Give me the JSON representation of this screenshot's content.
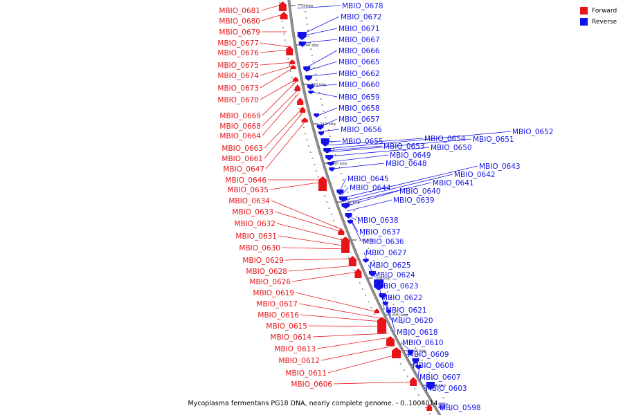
{
  "caption": "Mycoplasma fermentans PG18 DNA, nearly complete genome. - 0..1004014",
  "legend": [
    {
      "label": "Forward",
      "color": "#e8141a",
      "icon": "red-square-icon"
    },
    {
      "label": "Reverse",
      "color": "#1212e8",
      "icon": "blue-square-icon"
    }
  ],
  "colors": {
    "forward": "#e8141a",
    "reverse": "#1212e8",
    "backbone": "#888888"
  },
  "ticks": [
    "770 kbp",
    "760 kbp",
    "750 kbp",
    "740 kbp",
    "730 kbp",
    "720 kbp",
    "710 kbp",
    "700 kbp",
    "690 kbp",
    "680 kbp",
    "670 kbp"
  ],
  "forward_genes": [
    "MBIO_0681",
    "MBIO_0680",
    "MBIO_0679",
    "MBIO_0677",
    "MBIO_0676",
    "MBIO_0675",
    "MBIO_0674",
    "MBIO_0673",
    "MBIO_0670",
    "MBIO_0669",
    "MBIO_0668",
    "MBIO_0664",
    "MBIO_0663",
    "MBIO_0661",
    "MBIO_0647",
    "MBIO_0646",
    "MBIO_0635",
    "MBIO_0634",
    "MBIO_0633",
    "MBIO_0632",
    "MBIO_0631",
    "MBIO_0630",
    "MBIO_0629",
    "MBIO_0628",
    "MBIO_0626",
    "MBIO_0619",
    "MBIO_0617",
    "MBIO_0616",
    "MBIO_0615",
    "MBIO_0614",
    "MBIO_0613",
    "MBIO_0612",
    "MBIO_0611",
    "MBIO_0606"
  ],
  "reverse_genes": [
    "MBIO_0678",
    "MBIO_0672",
    "MBIO_0671",
    "MBIO_0667",
    "MBIO_0666",
    "MBIO_0665",
    "MBIO_0662",
    "MBIO_0660",
    "MBIO_0659",
    "MBIO_0658",
    "MBIO_0657",
    "MBIO_0656",
    "MBIO_0655",
    "MBIO_0654",
    "MBIO_0652",
    "MBIO_0651",
    "MBIO_0653",
    "MBIO_0650",
    "MBIO_0649",
    "MBIO_0648",
    "MBIO_0645",
    "MBIO_0644",
    "MBIO_0643",
    "MBIO_0642",
    "MBIO_0641",
    "MBIO_0640",
    "MBIO_0639",
    "MBIO_0638",
    "MBIO_0637",
    "MBIO_0636",
    "MBIO_0627",
    "MBIO_0625",
    "MBIO_0624",
    "MBIO_0623",
    "MBIO_0622",
    "MBIO_0621",
    "MBIO_0620",
    "MBIO_0618",
    "MBIO_0610",
    "MBIO_0609",
    "MBIO_0608",
    "MBIO_0607",
    "MBIO_0603",
    "MBIO_0598"
  ]
}
